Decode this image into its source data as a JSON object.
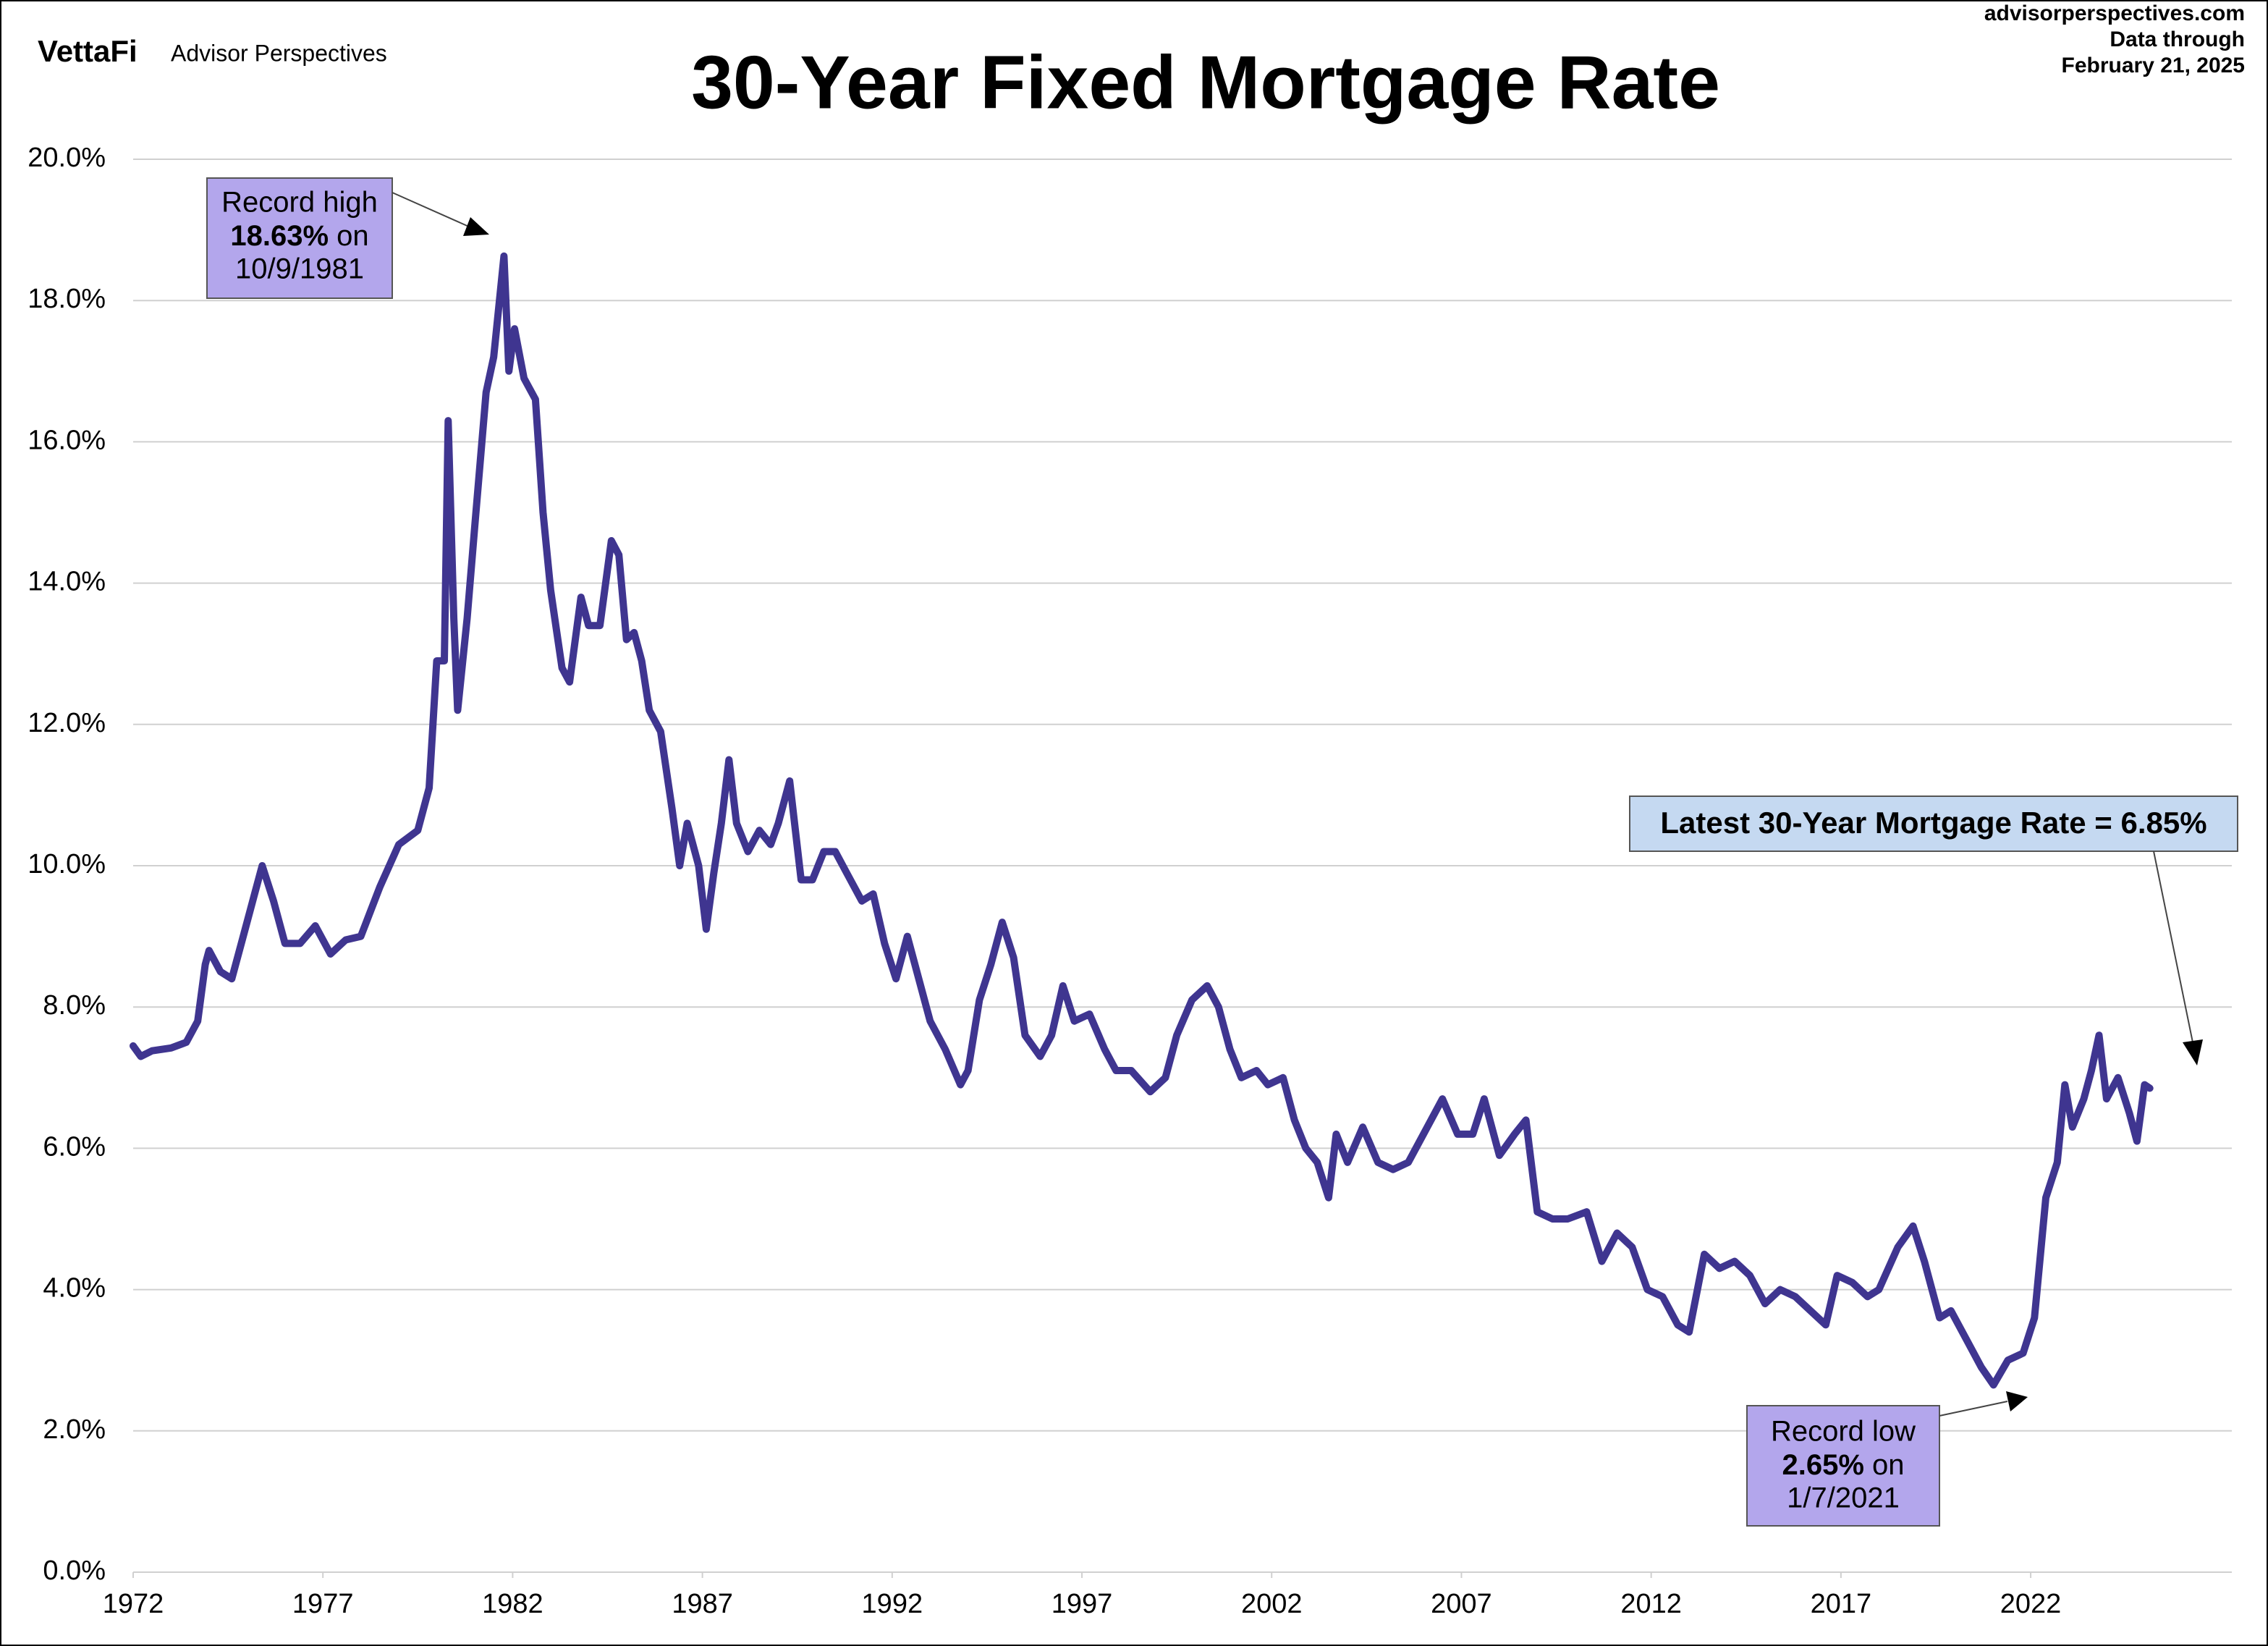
{
  "brand": {
    "logo": "VettaFi",
    "name": "Advisor Perspectives"
  },
  "source": {
    "site": "advisorperspectives.com",
    "line1": "Data through",
    "line2": "February 21, 2025"
  },
  "annotations": {
    "high": {
      "line1": "Record high",
      "bold": "18.63%",
      "rest": " on",
      "line3": "10/9/1981"
    },
    "low": {
      "line1": "Record low",
      "bold": "2.65%",
      "rest": " on",
      "line3": "1/7/2021"
    },
    "latest": {
      "text": "Latest 30-Year Mortgage Rate = 6.85%"
    }
  },
  "chart_data": {
    "type": "line",
    "title": "30-Year Fixed Mortgage Rate",
    "color": "#3f3590",
    "xlim": [
      1972,
      2027.3
    ],
    "xticks": [
      1972,
      1977,
      1982,
      1987,
      1992,
      1997,
      2002,
      2007,
      2012,
      2017,
      2022
    ],
    "ylim": [
      0,
      20
    ],
    "yticks": [
      {
        "value": 0,
        "label": "0.0%"
      },
      {
        "value": 2,
        "label": "2.0%"
      },
      {
        "value": 4,
        "label": "4.0%"
      },
      {
        "value": 6,
        "label": "6.0%"
      },
      {
        "value": 8,
        "label": "8.0%"
      },
      {
        "value": 10,
        "label": "10.0%"
      },
      {
        "value": 12,
        "label": "12.0%"
      },
      {
        "value": 14,
        "label": "14.0%"
      },
      {
        "value": 16,
        "label": "16.0%"
      },
      {
        "value": 18,
        "label": "18.0%"
      },
      {
        "value": 20,
        "label": "20.0%"
      }
    ],
    "grid": true,
    "x": [
      1972.0,
      1972.2,
      1972.5,
      1973.0,
      1973.4,
      1973.7,
      1973.9,
      1974.0,
      1974.3,
      1974.6,
      1974.9,
      1975.2,
      1975.4,
      1975.7,
      1976.0,
      1976.4,
      1976.8,
      1977.2,
      1977.6,
      1978.0,
      1978.5,
      1979.0,
      1979.5,
      1979.8,
      1980.0,
      1980.2,
      1980.3,
      1980.45,
      1980.55,
      1980.8,
      1981.0,
      1981.3,
      1981.5,
      1981.77,
      1981.9,
      1982.05,
      1982.3,
      1982.6,
      1982.8,
      1983.0,
      1983.3,
      1983.5,
      1983.8,
      1984.0,
      1984.3,
      1984.6,
      1984.8,
      1985.0,
      1985.2,
      1985.4,
      1985.6,
      1985.9,
      1986.2,
      1986.4,
      1986.6,
      1986.9,
      1987.1,
      1987.3,
      1987.5,
      1987.7,
      1987.9,
      1988.2,
      1988.5,
      1988.8,
      1989.0,
      1989.3,
      1989.6,
      1989.9,
      1990.2,
      1990.5,
      1990.8,
      1991.2,
      1991.5,
      1991.8,
      1992.1,
      1992.4,
      1992.8,
      1993.0,
      1993.4,
      1993.8,
      1994.0,
      1994.3,
      1994.6,
      1994.9,
      1995.2,
      1995.5,
      1995.9,
      1996.2,
      1996.5,
      1996.8,
      1997.2,
      1997.6,
      1997.9,
      1998.3,
      1998.8,
      1999.2,
      1999.5,
      1999.9,
      2000.3,
      2000.6,
      2000.9,
      2001.2,
      2001.6,
      2001.9,
      2002.3,
      2002.6,
      2002.9,
      2003.2,
      2003.5,
      2003.7,
      2004.0,
      2004.4,
      2004.8,
      2005.2,
      2005.6,
      2006.0,
      2006.5,
      2006.9,
      2007.3,
      2007.6,
      2008.0,
      2008.4,
      2008.7,
      2009.0,
      2009.4,
      2009.8,
      2010.3,
      2010.7,
      2011.1,
      2011.5,
      2011.9,
      2012.3,
      2012.7,
      2013.0,
      2013.4,
      2013.8,
      2014.2,
      2014.6,
      2015.0,
      2015.4,
      2015.8,
      2016.2,
      2016.6,
      2016.9,
      2017.3,
      2017.7,
      2018.0,
      2018.5,
      2018.9,
      2019.2,
      2019.6,
      2019.9,
      2020.3,
      2020.7,
      2021.02,
      2021.4,
      2021.8,
      2022.1,
      2022.4,
      2022.7,
      2022.9,
      2023.1,
      2023.4,
      2023.6,
      2023.8,
      2024.0,
      2024.3,
      2024.6,
      2024.8,
      2025.0,
      2025.14
    ],
    "values": [
      7.45,
      7.3,
      7.38,
      7.42,
      7.5,
      7.8,
      8.6,
      8.8,
      8.5,
      8.4,
      9.0,
      9.6,
      10.0,
      9.5,
      8.9,
      8.9,
      9.15,
      8.75,
      8.95,
      9.0,
      9.7,
      10.3,
      10.5,
      11.1,
      12.9,
      12.9,
      16.3,
      13.5,
      12.2,
      13.5,
      14.8,
      16.7,
      17.2,
      18.63,
      17.0,
      17.6,
      16.9,
      16.6,
      15.0,
      13.9,
      12.8,
      12.6,
      13.8,
      13.4,
      13.4,
      14.6,
      14.4,
      13.2,
      13.3,
      12.9,
      12.2,
      11.9,
      10.8,
      10.0,
      10.6,
      10.0,
      9.1,
      9.9,
      10.6,
      11.5,
      10.6,
      10.2,
      10.5,
      10.3,
      10.6,
      11.2,
      9.8,
      9.8,
      10.2,
      10.2,
      9.9,
      9.5,
      9.6,
      8.9,
      8.4,
      9.0,
      8.2,
      7.8,
      7.4,
      6.9,
      7.1,
      8.1,
      8.6,
      9.2,
      8.7,
      7.6,
      7.3,
      7.6,
      8.3,
      7.8,
      7.9,
      7.4,
      7.1,
      7.1,
      6.8,
      7.0,
      7.6,
      8.1,
      8.3,
      8.0,
      7.4,
      7.0,
      7.1,
      6.9,
      7.0,
      6.4,
      6.0,
      5.8,
      5.3,
      6.2,
      5.8,
      6.3,
      5.8,
      5.7,
      5.8,
      6.2,
      6.7,
      6.2,
      6.2,
      6.7,
      5.9,
      6.2,
      6.4,
      5.1,
      5.0,
      5.0,
      5.1,
      4.4,
      4.8,
      4.6,
      4.0,
      3.9,
      3.5,
      3.4,
      4.5,
      4.3,
      4.4,
      4.2,
      3.8,
      4.0,
      3.9,
      3.7,
      3.5,
      4.2,
      4.1,
      3.9,
      4.0,
      4.6,
      4.9,
      4.4,
      3.6,
      3.7,
      3.3,
      2.9,
      2.65,
      3.0,
      3.1,
      3.6,
      5.3,
      5.8,
      6.9,
      6.3,
      6.7,
      7.1,
      7.6,
      6.7,
      7.0,
      6.5,
      6.1,
      6.9,
      6.85
    ]
  }
}
